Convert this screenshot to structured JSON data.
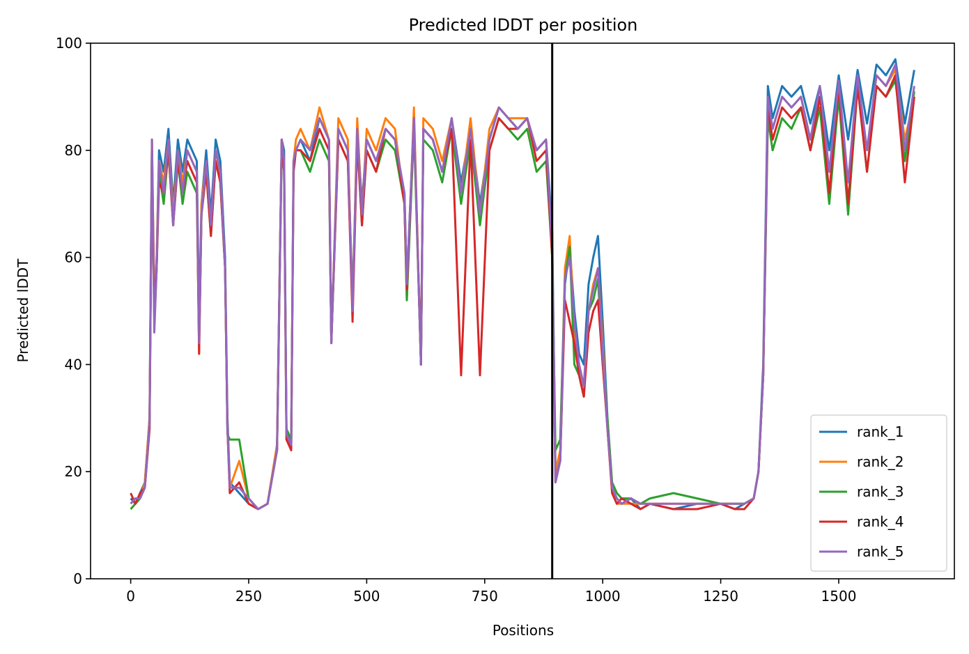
{
  "chart_data": {
    "type": "line",
    "title": "Predicted lDDT per position",
    "xlabel": "Positions",
    "ylabel": "Predicted lDDT",
    "xlim": [
      -85,
      1745
    ],
    "ylim": [
      0,
      100
    ],
    "xticks": [
      0,
      250,
      500,
      750,
      1000,
      1250,
      1500
    ],
    "yticks": [
      0,
      20,
      40,
      60,
      80,
      100
    ],
    "grid": false,
    "legend_position": "lower-right",
    "vline_x": 893,
    "x": [
      0,
      10,
      20,
      30,
      40,
      45,
      50,
      55,
      60,
      70,
      80,
      90,
      100,
      110,
      120,
      130,
      140,
      145,
      150,
      160,
      170,
      180,
      190,
      200,
      205,
      210,
      230,
      250,
      270,
      290,
      310,
      320,
      325,
      330,
      340,
      345,
      350,
      360,
      380,
      400,
      420,
      425,
      440,
      460,
      470,
      480,
      490,
      500,
      520,
      540,
      560,
      580,
      585,
      600,
      615,
      620,
      640,
      660,
      680,
      700,
      720,
      740,
      760,
      780,
      800,
      820,
      840,
      860,
      880,
      893,
      900,
      910,
      920,
      930,
      940,
      950,
      960,
      970,
      980,
      990,
      1000,
      1010,
      1020,
      1030,
      1040,
      1060,
      1080,
      1100,
      1150,
      1200,
      1250,
      1280,
      1300,
      1320,
      1330,
      1340,
      1350,
      1360,
      1380,
      1400,
      1420,
      1440,
      1460,
      1480,
      1500,
      1520,
      1540,
      1560,
      1580,
      1600,
      1620,
      1640,
      1660
    ],
    "series": [
      {
        "name": "rank_1",
        "color": "#1f77b4",
        "values": [
          15,
          14,
          16,
          18,
          30,
          82,
          50,
          60,
          80,
          76,
          84,
          70,
          82,
          76,
          82,
          80,
          78,
          48,
          70,
          80,
          68,
          82,
          78,
          60,
          30,
          18,
          16,
          14,
          13,
          14,
          25,
          82,
          80,
          28,
          24,
          78,
          80,
          82,
          78,
          86,
          82,
          44,
          84,
          80,
          52,
          84,
          70,
          82,
          78,
          84,
          82,
          72,
          55,
          86,
          40,
          84,
          82,
          76,
          86,
          74,
          84,
          70,
          82,
          88,
          86,
          84,
          86,
          80,
          82,
          65,
          20,
          22,
          55,
          62,
          50,
          42,
          40,
          55,
          60,
          64,
          48,
          30,
          17,
          15,
          14,
          15,
          13,
          14,
          13,
          14,
          14,
          13,
          14,
          15,
          20,
          40,
          92,
          86,
          92,
          90,
          92,
          85,
          92,
          80,
          94,
          82,
          95,
          85,
          96,
          94,
          97,
          85,
          95
        ]
      },
      {
        "name": "rank_2",
        "color": "#ff7f0e",
        "values": [
          14,
          15,
          15,
          18,
          30,
          82,
          52,
          60,
          78,
          74,
          82,
          68,
          80,
          74,
          80,
          78,
          76,
          42,
          70,
          78,
          66,
          80,
          76,
          58,
          28,
          17,
          22,
          15,
          13,
          14,
          25,
          82,
          78,
          26,
          26,
          78,
          82,
          84,
          80,
          88,
          82,
          44,
          86,
          82,
          50,
          86,
          68,
          84,
          80,
          86,
          84,
          70,
          52,
          88,
          40,
          86,
          84,
          78,
          86,
          72,
          86,
          68,
          84,
          88,
          86,
          86,
          86,
          80,
          82,
          60,
          20,
          24,
          58,
          64,
          46,
          40,
          36,
          50,
          55,
          58,
          44,
          28,
          16,
          14,
          14,
          14,
          14,
          14,
          14,
          14,
          14,
          14,
          14,
          15,
          20,
          38,
          88,
          84,
          90,
          88,
          90,
          82,
          90,
          76,
          92,
          70,
          93,
          80,
          94,
          92,
          95,
          82,
          90
        ]
      },
      {
        "name": "rank_3",
        "color": "#2ca02c",
        "values": [
          13,
          14,
          15,
          17,
          28,
          80,
          48,
          58,
          76,
          70,
          80,
          66,
          78,
          70,
          76,
          74,
          72,
          44,
          68,
          76,
          64,
          78,
          74,
          58,
          27,
          26,
          26,
          15,
          13,
          14,
          24,
          80,
          76,
          28,
          26,
          76,
          80,
          80,
          76,
          82,
          78,
          44,
          82,
          78,
          50,
          82,
          66,
          80,
          76,
          82,
          80,
          70,
          52,
          84,
          40,
          82,
          80,
          74,
          84,
          70,
          82,
          66,
          80,
          86,
          84,
          82,
          84,
          76,
          78,
          60,
          24,
          26,
          56,
          62,
          40,
          38,
          34,
          50,
          52,
          56,
          40,
          30,
          18,
          16,
          15,
          15,
          14,
          15,
          16,
          15,
          14,
          14,
          14,
          15,
          20,
          38,
          86,
          80,
          86,
          84,
          88,
          80,
          88,
          70,
          90,
          68,
          92,
          76,
          92,
          90,
          93,
          78,
          91
        ]
      },
      {
        "name": "rank_4",
        "color": "#d62728",
        "values": [
          16,
          14,
          16,
          17,
          28,
          80,
          50,
          58,
          74,
          72,
          80,
          66,
          78,
          72,
          78,
          76,
          74,
          42,
          68,
          76,
          64,
          78,
          74,
          58,
          28,
          16,
          18,
          14,
          13,
          14,
          24,
          82,
          76,
          26,
          24,
          76,
          80,
          80,
          78,
          84,
          80,
          44,
          82,
          78,
          48,
          82,
          66,
          80,
          76,
          84,
          82,
          70,
          54,
          86,
          40,
          84,
          82,
          76,
          84,
          38,
          82,
          38,
          80,
          86,
          84,
          84,
          86,
          78,
          80,
          60,
          18,
          22,
          52,
          48,
          44,
          38,
          34,
          46,
          50,
          52,
          40,
          28,
          16,
          14,
          15,
          14,
          13,
          14,
          13,
          13,
          14,
          13,
          13,
          15,
          20,
          38,
          88,
          82,
          88,
          86,
          88,
          80,
          90,
          72,
          92,
          70,
          92,
          76,
          92,
          90,
          94,
          74,
          90
        ]
      },
      {
        "name": "rank_5",
        "color": "#9467bd",
        "values": [
          14,
          15,
          15,
          17,
          29,
          82,
          46,
          58,
          78,
          72,
          82,
          66,
          80,
          72,
          80,
          78,
          76,
          44,
          68,
          78,
          66,
          80,
          76,
          58,
          28,
          17,
          17,
          15,
          13,
          14,
          24,
          82,
          78,
          27,
          25,
          78,
          80,
          82,
          80,
          86,
          82,
          44,
          84,
          80,
          50,
          84,
          68,
          82,
          78,
          84,
          82,
          72,
          55,
          86,
          40,
          84,
          82,
          76,
          86,
          72,
          84,
          68,
          82,
          88,
          86,
          84,
          86,
          80,
          82,
          62,
          18,
          22,
          56,
          60,
          48,
          40,
          36,
          50,
          54,
          58,
          42,
          28,
          17,
          15,
          14,
          15,
          14,
          14,
          14,
          14,
          14,
          14,
          14,
          15,
          20,
          38,
          90,
          84,
          90,
          88,
          90,
          82,
          92,
          76,
          93,
          74,
          94,
          80,
          94,
          92,
          96,
          80,
          92
        ]
      }
    ]
  }
}
